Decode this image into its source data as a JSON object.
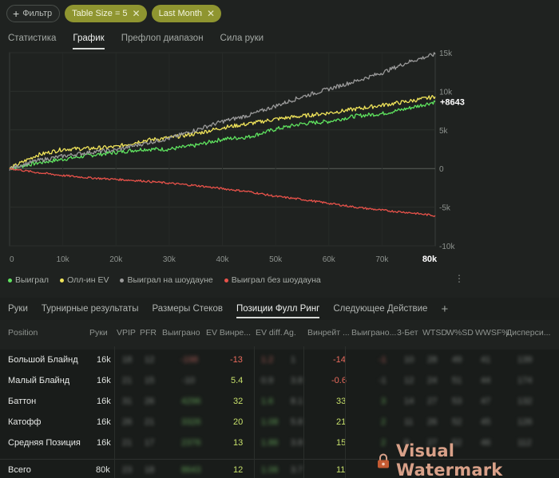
{
  "filters": {
    "add_label": "Фильтр",
    "chips": [
      {
        "label": "Table Size = 5"
      },
      {
        "label": "Last Month"
      }
    ]
  },
  "top_tabs": [
    {
      "label": "Статистика",
      "active": false
    },
    {
      "label": "График",
      "active": true
    },
    {
      "label": "Префлоп диапазон",
      "active": false
    },
    {
      "label": "Сила руки",
      "active": false
    }
  ],
  "chart_data": {
    "type": "line",
    "x_ticks": [
      "0",
      "10k",
      "20k",
      "30k",
      "40k",
      "50k",
      "60k",
      "70k",
      "80k"
    ],
    "y_ticks": [
      "15k",
      "10k",
      "5k",
      "0",
      "-5k",
      "-10k"
    ],
    "xlim": [
      0,
      80000
    ],
    "ylim": [
      -10000,
      15000
    ],
    "end_label": "+8643",
    "series": [
      {
        "name": "Выиграл",
        "color": "#5fe35f",
        "x": [
          0,
          5000,
          10000,
          15000,
          20000,
          25000,
          30000,
          35000,
          40000,
          45000,
          50000,
          55000,
          60000,
          65000,
          70000,
          75000,
          80000
        ],
        "values": [
          0,
          700,
          1200,
          1700,
          2100,
          2500,
          2500,
          3000,
          3800,
          4100,
          5100,
          5800,
          6100,
          6800,
          7100,
          7800,
          8643
        ]
      },
      {
        "name": "Олл-ин EV",
        "color": "#f0e45a",
        "x": [
          0,
          5000,
          10000,
          15000,
          20000,
          25000,
          30000,
          35000,
          40000,
          45000,
          50000,
          55000,
          60000,
          65000,
          70000,
          75000,
          80000
        ],
        "values": [
          0,
          1700,
          2500,
          2600,
          2800,
          3600,
          4000,
          4500,
          5300,
          5800,
          6400,
          6800,
          7200,
          7700,
          8200,
          8700,
          9300
        ]
      },
      {
        "name": "Выиграл на шоудауне",
        "color": "#9a9a9a",
        "x": [
          0,
          5000,
          10000,
          15000,
          20000,
          25000,
          30000,
          35000,
          40000,
          45000,
          50000,
          55000,
          60000,
          65000,
          70000,
          75000,
          80000
        ],
        "values": [
          0,
          1000,
          1600,
          2100,
          2400,
          3200,
          3900,
          5000,
          6100,
          6900,
          8100,
          9300,
          10300,
          11300,
          12400,
          13800,
          14800
        ]
      },
      {
        "name": "Выиграл без шоудауна",
        "color": "#e8524a",
        "x": [
          0,
          5000,
          10000,
          15000,
          20000,
          25000,
          30000,
          35000,
          40000,
          45000,
          50000,
          55000,
          60000,
          65000,
          70000,
          75000,
          80000
        ],
        "values": [
          0,
          -500,
          -900,
          -1200,
          -1400,
          -1600,
          -1900,
          -2200,
          -2600,
          -3000,
          -3600,
          -4000,
          -4500,
          -5000,
          -5400,
          -5700,
          -6100
        ]
      }
    ]
  },
  "legend": {
    "items": [
      {
        "label": "Выиграл",
        "color": "#5fe35f"
      },
      {
        "label": "Олл-ин EV",
        "color": "#f0e45a"
      },
      {
        "label": "Выиграл на шоудауне",
        "color": "#9a9a9a"
      },
      {
        "label": "Выиграл без шоудауна",
        "color": "#e8524a"
      }
    ]
  },
  "lower_tabs": [
    {
      "label": "Руки",
      "active": false
    },
    {
      "label": "Турнирные результаты",
      "active": false
    },
    {
      "label": "Размеры Стеков",
      "active": false
    },
    {
      "label": "Позиции Фулл Ринг",
      "active": true
    },
    {
      "label": "Следующее Действие",
      "active": false
    },
    {
      "label": "+",
      "active": false
    }
  ],
  "table": {
    "headers": [
      "Position",
      "Руки",
      "VPIP",
      "PFR",
      "Выиграно",
      "EV Винре...",
      "EV diff.",
      "Ag.",
      "Винрейт ...",
      "Выиграно...",
      "3-Бет",
      "WTSD",
      "W%SD",
      "WWSF%",
      "Дисперси..."
    ],
    "rows": [
      {
        "position": "Большой Блайнд",
        "hands": "16k",
        "ev_winrate": "-13",
        "winrate": "-14"
      },
      {
        "position": "Малый Блайнд",
        "hands": "16k",
        "ev_winrate": "5.4",
        "winrate": "-0.6"
      },
      {
        "position": "Баттон",
        "hands": "16k",
        "ev_winrate": "32",
        "winrate": "33"
      },
      {
        "position": "Катофф",
        "hands": "16k",
        "ev_winrate": "20",
        "winrate": "21"
      },
      {
        "position": "Средняя Позиция",
        "hands": "16k",
        "ev_winrate": "13",
        "winrate": "15"
      }
    ],
    "total": {
      "position": "Всего",
      "hands": "80k",
      "ev_winrate": "12",
      "winrate": "11"
    }
  },
  "watermark": {
    "text": "Visual Watermark"
  },
  "colors": {
    "accent_chip": "#8f9530",
    "negative": "#ea6b5d",
    "positive": "#c7e06b"
  }
}
